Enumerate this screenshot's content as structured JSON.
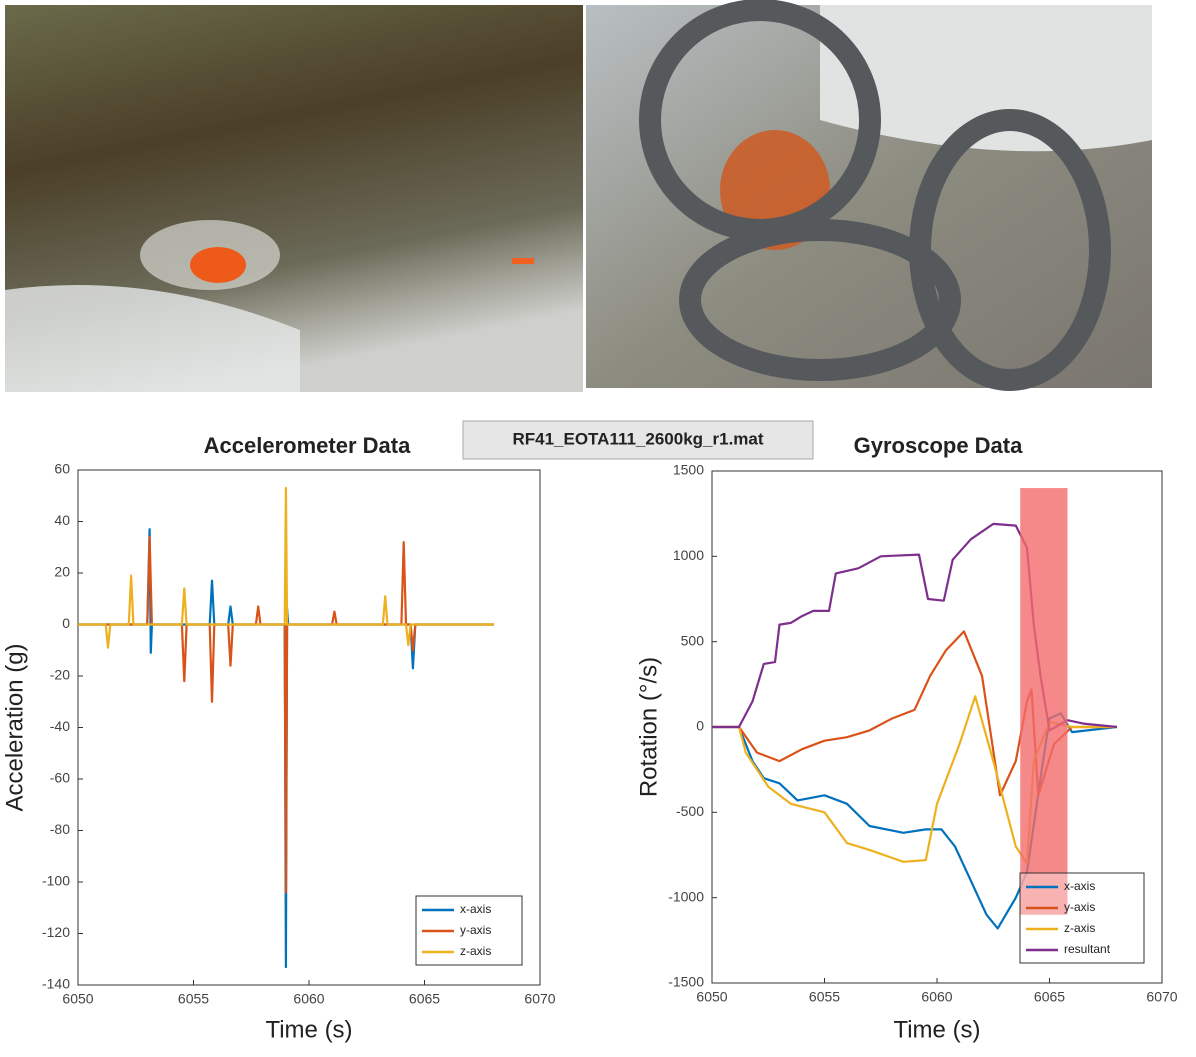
{
  "file_label": "RF41_EOTA111_2600kg_r1.mat",
  "chart_data": [
    {
      "type": "line",
      "title": "Accelerometer Data",
      "xlabel": "Time (s)",
      "ylabel": "Acceleration (g)",
      "xlim": [
        6050,
        6070
      ],
      "xticks": [
        6050,
        6055,
        6060,
        6065,
        6070
      ],
      "ylim": [
        -140,
        60
      ],
      "yticks": [
        -140,
        -120,
        -100,
        -80,
        -60,
        -40,
        -20,
        0,
        20,
        40,
        60
      ],
      "legend": "lower right",
      "series": [
        {
          "name": "x-axis",
          "color": "#0072bd",
          "x": [
            6050,
            6053.0,
            6053.1,
            6053.15,
            6053.2,
            6055.7,
            6055.8,
            6055.9,
            6056.5,
            6056.6,
            6056.7,
            6058.95,
            6059.0,
            6059.05,
            6059.1,
            6064.4,
            6064.5,
            6064.6,
            6068
          ],
          "values": [
            0,
            0,
            37,
            -11,
            0,
            0,
            17,
            0,
            0,
            7,
            0,
            0,
            -133,
            6,
            0,
            0,
            -17,
            0,
            0
          ]
        },
        {
          "name": "y-axis",
          "color": "#d95319",
          "x": [
            6050,
            6053.0,
            6053.1,
            6053.2,
            6054.5,
            6054.6,
            6054.7,
            6055.7,
            6055.8,
            6055.9,
            6056.5,
            6056.6,
            6056.7,
            6057.7,
            6057.8,
            6057.9,
            6058.95,
            6059.0,
            6059.05,
            6061.0,
            6061.1,
            6061.2,
            6064.0,
            6064.1,
            6064.2,
            6064.4,
            6064.5,
            6064.6,
            6068
          ],
          "values": [
            0,
            0,
            34,
            0,
            0,
            -22,
            0,
            0,
            -30,
            0,
            0,
            -16,
            0,
            0,
            7,
            0,
            0,
            -104,
            0,
            0,
            5,
            0,
            0,
            32,
            0,
            0,
            -10,
            0,
            0
          ]
        },
        {
          "name": "z-axis",
          "color": "#edb120",
          "x": [
            6050,
            6051.2,
            6051.3,
            6051.4,
            6052.2,
            6052.3,
            6052.4,
            6054.5,
            6054.6,
            6054.7,
            6058.95,
            6059.0,
            6059.05,
            6063.2,
            6063.3,
            6063.4,
            6064.2,
            6064.3,
            6064.4,
            6068
          ],
          "values": [
            0,
            0,
            -9,
            0,
            0,
            19,
            0,
            0,
            14,
            0,
            0,
            53,
            0,
            0,
            11,
            0,
            0,
            -8,
            0,
            0
          ]
        }
      ]
    },
    {
      "type": "line",
      "title": "Gyroscope Data",
      "xlabel": "Time (s)",
      "ylabel": "Rotation (°/s)",
      "xlim": [
        6050,
        6070
      ],
      "xticks": [
        6050,
        6055,
        6060,
        6065,
        6070
      ],
      "ylim": [
        -1500,
        1500
      ],
      "yticks": [
        -1500,
        -1000,
        -500,
        0,
        500,
        1000,
        1500
      ],
      "legend": "lower right",
      "highlight": {
        "x": [
          6063.7,
          6065.8
        ],
        "y": [
          -1100,
          1400
        ],
        "color": "#f26b6b"
      },
      "series": [
        {
          "name": "x-axis",
          "color": "#0072bd",
          "x": [
            6050,
            6051.2,
            6051.8,
            6052.3,
            6053,
            6053.8,
            6055,
            6056,
            6057,
            6058.5,
            6059.5,
            6060.2,
            6060.8,
            6061.5,
            6062.2,
            6062.7,
            6063.5,
            6064,
            6064.6,
            6065,
            6065.5,
            6066,
            6068
          ],
          "values": [
            0,
            0,
            -200,
            -300,
            -330,
            -430,
            -400,
            -450,
            -580,
            -620,
            -600,
            -600,
            -700,
            -900,
            -1100,
            -1180,
            -1000,
            -850,
            -300,
            50,
            80,
            -30,
            0
          ]
        },
        {
          "name": "y-axis",
          "color": "#d95319",
          "x": [
            6050,
            6051.2,
            6052,
            6053,
            6054,
            6055,
            6056,
            6057,
            6058,
            6059,
            6059.7,
            6060.4,
            6061.2,
            6062,
            6062.8,
            6063.5,
            6064,
            6064.2,
            6064.5,
            6065.2,
            6066,
            6068
          ],
          "values": [
            0,
            0,
            -150,
            -200,
            -130,
            -80,
            -60,
            -20,
            50,
            100,
            300,
            450,
            560,
            300,
            -400,
            -200,
            150,
            220,
            -400,
            -100,
            0,
            0
          ]
        },
        {
          "name": "z-axis",
          "color": "#edb120",
          "x": [
            6050,
            6051.2,
            6051.5,
            6052.5,
            6053.5,
            6055,
            6056,
            6057,
            6058.5,
            6059.5,
            6060,
            6061,
            6061.7,
            6062.5,
            6063.5,
            6064,
            6064.3,
            6065,
            6066,
            6068
          ],
          "values": [
            0,
            0,
            -150,
            -350,
            -450,
            -500,
            -680,
            -720,
            -790,
            -780,
            -450,
            -100,
            180,
            -200,
            -700,
            -800,
            -200,
            30,
            0,
            0
          ]
        },
        {
          "name": "resultant",
          "color": "#7e2f8e",
          "x": [
            6050,
            6051.2,
            6051.8,
            6052.3,
            6052.8,
            6053,
            6053.5,
            6054,
            6054.5,
            6055.2,
            6055.5,
            6056.5,
            6057.5,
            6059.2,
            6059.6,
            6060.3,
            6060.7,
            6061.5,
            6062.5,
            6063.5,
            6064,
            6064.3,
            6064.6,
            6065,
            6065.8,
            6066.5,
            6068
          ],
          "values": [
            0,
            0,
            150,
            370,
            380,
            600,
            610,
            650,
            680,
            680,
            900,
            930,
            1000,
            1010,
            750,
            740,
            980,
            1100,
            1190,
            1180,
            1050,
            600,
            300,
            -20,
            40,
            20,
            0
          ]
        }
      ]
    }
  ]
}
